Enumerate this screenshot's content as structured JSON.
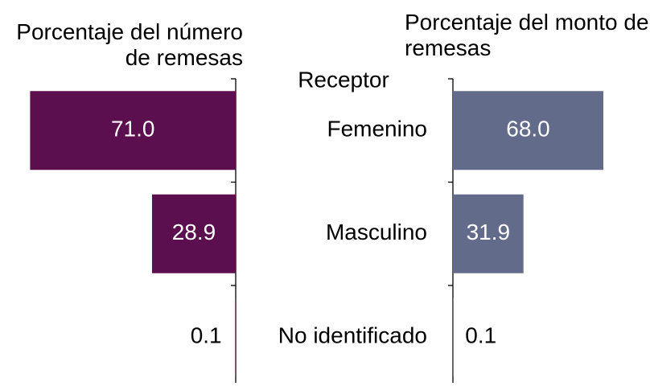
{
  "chart_data": {
    "type": "butterfly_bar",
    "category_title": "Receptor",
    "categories": [
      "Femenino",
      "Masculino",
      "No identificado"
    ],
    "series": [
      {
        "name": "Porcentaje del número de remesas",
        "color": "#5c0f4f",
        "values": [
          71.0,
          28.9,
          0.1
        ],
        "value_labels": [
          "71.0",
          "28.9",
          "0.1"
        ],
        "xlim": [
          0,
          80
        ]
      },
      {
        "name": "Porcentaje del monto de remesas",
        "color": "#636b8b",
        "values": [
          68.0,
          31.9,
          0.1
        ],
        "value_labels": [
          "68.0",
          "31.9",
          "0.1"
        ],
        "xlim": [
          0,
          80
        ]
      }
    ]
  }
}
